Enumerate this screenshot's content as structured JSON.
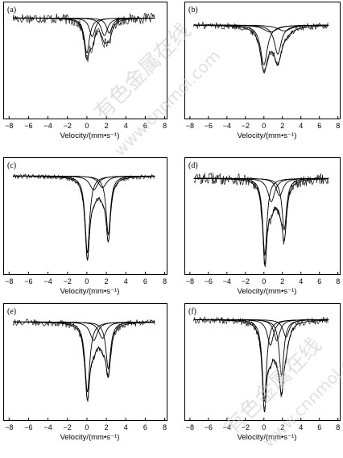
{
  "watermark": {
    "text_cn": "有色金属在线",
    "text_url": "www.cnnmol.com"
  },
  "chart_data": [
    {
      "panel": "(a)",
      "type": "line",
      "xlabel": "Velocity/(mm•s⁻¹)",
      "xticks": [
        "−8",
        "−6",
        "−4",
        "−2",
        "0",
        "2",
        "4",
        "6",
        "8"
      ],
      "xlim": [
        -8.6,
        8.2
      ],
      "baseline": 0.86,
      "noise": 0.045,
      "peaks": [
        {
          "x": 0.0,
          "depth": 0.3,
          "w": 0.32
        },
        {
          "x": 0.55,
          "depth": 0.16,
          "w": 0.35
        },
        {
          "x": 1.8,
          "depth": 0.15,
          "w": 0.4
        },
        {
          "x": 2.3,
          "depth": 0.13,
          "w": 0.35
        }
      ]
    },
    {
      "panel": "(b)",
      "type": "line",
      "xlabel": "Velocity/(mm•s⁻¹)",
      "xticks": [
        "−8",
        "−6",
        "−4",
        "−2",
        "0",
        "2",
        "4",
        "6",
        "8"
      ],
      "xlim": [
        -8.6,
        8.2
      ],
      "baseline": 0.8,
      "noise": 0.03,
      "peaks": [
        {
          "x": 0.0,
          "depth": 0.34,
          "w": 0.45
        },
        {
          "x": 1.5,
          "depth": 0.25,
          "w": 0.45
        },
        {
          "x": 0.7,
          "depth": 0.06,
          "w": 0.9
        },
        {
          "x": 2.2,
          "depth": 0.05,
          "w": 0.9
        }
      ]
    },
    {
      "panel": "(c)",
      "type": "line",
      "xlabel": "Velocity/(mm•s⁻¹)",
      "xticks": [
        "−8",
        "−6",
        "−4",
        "−2",
        "0",
        "2",
        "4",
        "6",
        "8"
      ],
      "xlim": [
        -8.6,
        8.2
      ],
      "baseline": 0.84,
      "noise": 0.02,
      "peaks": [
        {
          "x": 0.05,
          "depth": 0.66,
          "w": 0.28
        },
        {
          "x": 2.2,
          "depth": 0.5,
          "w": 0.28
        },
        {
          "x": 0.7,
          "depth": 0.12,
          "w": 0.5
        },
        {
          "x": 1.6,
          "depth": 0.1,
          "w": 0.5
        }
      ]
    },
    {
      "panel": "(d)",
      "type": "line",
      "xlabel": "Velocity/(mm•s⁻¹)",
      "xticks": [
        "−8",
        "−6",
        "−4",
        "−2",
        "0",
        "2",
        "4",
        "6",
        "8"
      ],
      "xlim": [
        -8.6,
        8.2
      ],
      "baseline": 0.82,
      "noise": 0.05,
      "peaks": [
        {
          "x": 0.1,
          "depth": 0.66,
          "w": 0.28
        },
        {
          "x": 2.2,
          "depth": 0.44,
          "w": 0.3
        },
        {
          "x": 0.8,
          "depth": 0.2,
          "w": 0.45
        },
        {
          "x": 1.7,
          "depth": 0.15,
          "w": 0.45
        }
      ]
    },
    {
      "panel": "(e)",
      "type": "line",
      "xlabel": "Velocity/(mm•s⁻¹)",
      "xticks": [
        "−8",
        "−6",
        "−4",
        "−2",
        "0",
        "2",
        "4",
        "6",
        "8"
      ],
      "xlim": [
        -8.6,
        8.2
      ],
      "baseline": 0.84,
      "noise": 0.03,
      "peaks": [
        {
          "x": 0.05,
          "depth": 0.6,
          "w": 0.3
        },
        {
          "x": 2.2,
          "depth": 0.4,
          "w": 0.3
        },
        {
          "x": 0.7,
          "depth": 0.16,
          "w": 0.45
        },
        {
          "x": 1.6,
          "depth": 0.14,
          "w": 0.45
        }
      ]
    },
    {
      "panel": "(f)",
      "type": "line",
      "xlabel": "Velocity/(mm•s⁻¹)",
      "xticks": [
        "−8",
        "−6",
        "−4",
        "−2",
        "0",
        "2",
        "4",
        "6",
        "8"
      ],
      "xlim": [
        -8.6,
        8.2
      ],
      "baseline": 0.86,
      "noise": 0.03,
      "peaks": [
        {
          "x": 0.05,
          "depth": 0.7,
          "w": 0.28
        },
        {
          "x": 1.9,
          "depth": 0.48,
          "w": 0.3
        },
        {
          "x": 0.7,
          "depth": 0.22,
          "w": 0.4
        },
        {
          "x": 1.4,
          "depth": 0.18,
          "w": 0.4
        },
        {
          "x": 2.4,
          "depth": 0.15,
          "w": 0.4
        }
      ]
    }
  ]
}
